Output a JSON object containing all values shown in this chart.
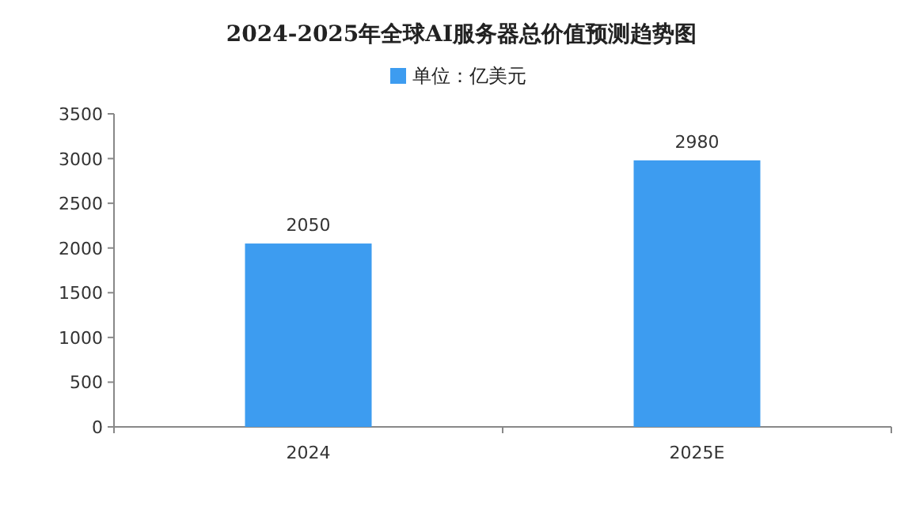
{
  "chart_data": {
    "type": "bar",
    "title": "2024-2025年全球AI服务器总价值预测趋势图",
    "categories": [
      "2024",
      "2025E"
    ],
    "series": [
      {
        "name": "单位：亿美元",
        "color": "#3d9cf0",
        "values": [
          2050,
          2980
        ]
      }
    ],
    "ylim": [
      0,
      3500
    ],
    "yticks": [
      0,
      500,
      1000,
      1500,
      2000,
      2500,
      3000,
      3500
    ],
    "data_labels": true,
    "legend": "top"
  }
}
